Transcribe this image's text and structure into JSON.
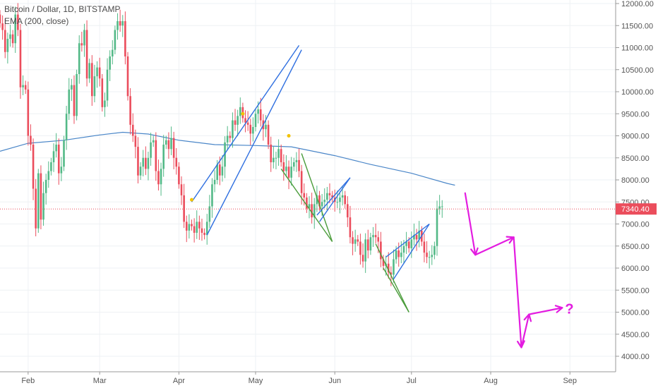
{
  "legend": {
    "title": "Bitcoin / Dollar, 1D, BITSTAMP",
    "indicator": "EMA (200, close)"
  },
  "colors": {
    "up": "#53b987",
    "down": "#eb4d5c",
    "ema": "#4a86c8",
    "pattern_blue": "#2f6fe0",
    "pattern_green": "#4a9c3a",
    "projection": "#e31ce0",
    "price_tag": "#eb4d5c",
    "marker": "#f2c200"
  },
  "chart_data": {
    "type": "candlestick",
    "title": "Bitcoin / Dollar, 1D, BITSTAMP",
    "xlabel": "",
    "ylabel": "",
    "ylim": [
      3800,
      12100
    ],
    "xlim": [
      "2018-01-21",
      "2018-09-11"
    ],
    "y_ticks": [
      "12000.00",
      "11500.00",
      "11000.00",
      "10500.00",
      "10000.00",
      "9500.00",
      "9000.00",
      "8500.00",
      "8000.00",
      "7500.00",
      "7000.00",
      "6500.00",
      "6000.00",
      "5500.00",
      "5000.00",
      "4500.00",
      "4000.00"
    ],
    "x_ticks": [
      {
        "label": "Feb",
        "date": "2018-02-01"
      },
      {
        "label": "Mar",
        "date": "2018-03-01"
      },
      {
        "label": "Apr",
        "date": "2018-04-01"
      },
      {
        "label": "May",
        "date": "2018-05-01"
      },
      {
        "label": "Jun",
        "date": "2018-06-01"
      },
      {
        "label": "Jul",
        "date": "2018-07-01"
      },
      {
        "label": "Aug",
        "date": "2018-08-01"
      },
      {
        "label": "Sep",
        "date": "2018-09-01"
      }
    ],
    "start_date": "2018-01-21",
    "last_price": "7340.40",
    "last_price_value": 7340.4,
    "closes": [
      11550,
      11400,
      10900,
      11200,
      11300,
      11100,
      11750,
      11400,
      10100,
      10150,
      10050,
      9000,
      8800,
      7800,
      6900,
      8150,
      7100,
      7700,
      8000,
      8200,
      8400,
      8650,
      8800,
      8150,
      8300,
      8900,
      9500,
      10050,
      10150,
      9450,
      10400,
      11100,
      11050,
      11400,
      10300,
      10650,
      9900,
      10350,
      10550,
      10300,
      9650,
      9800,
      10500,
      10800,
      10950,
      11400,
      11600,
      11500,
      11600,
      10800,
      9900,
      9250,
      9000,
      8750,
      8100,
      8300,
      8500,
      8250,
      8500,
      8850,
      8900,
      8200,
      7900,
      8250,
      8800,
      8900,
      8700,
      8950,
      8500,
      8300,
      7900,
      7650,
      7050,
      6850,
      7000,
      6950,
      6800,
      7050,
      6900,
      6800,
      6750,
      7050,
      7400,
      7900,
      8000,
      8350,
      8100,
      8300,
      8850,
      9000,
      8950,
      9350,
      9250,
      9450,
      9650,
      9400,
      9300,
      9250,
      9050,
      9200,
      9500,
      9600,
      9350,
      9150,
      9250,
      8800,
      8400,
      8500,
      8500,
      8700,
      8400,
      8200,
      8300,
      8050,
      8300,
      8400,
      8450,
      8200,
      7700,
      7600,
      7350,
      7450,
      7150,
      7450,
      7650,
      7400,
      7500,
      7550,
      7700,
      7650,
      7600,
      7500,
      7500,
      7600,
      7650,
      7450,
      7150,
      6700,
      6550,
      6650,
      6600,
      6300,
      6150,
      6650,
      6400,
      6700,
      6750,
      6700,
      6600,
      6200,
      6050,
      6100,
      5900,
      5850,
      6200,
      6400,
      6250,
      6350,
      6500,
      6600,
      6450,
      6650,
      6750,
      6650,
      6850,
      6600,
      6350,
      6250,
      6250,
      6300,
      6500,
      7350,
      7400,
      7400
    ],
    "ema": [
      {
        "date": "2018-01-21",
        "value": 8650
      },
      {
        "date": "2018-02-01",
        "value": 8830
      },
      {
        "date": "2018-02-15",
        "value": 8900
      },
      {
        "date": "2018-03-01",
        "value": 9020
      },
      {
        "date": "2018-03-10",
        "value": 9080
      },
      {
        "date": "2018-03-20",
        "value": 9040
      },
      {
        "date": "2018-04-01",
        "value": 8900
      },
      {
        "date": "2018-04-15",
        "value": 8800
      },
      {
        "date": "2018-05-01",
        "value": 8780
      },
      {
        "date": "2018-05-15",
        "value": 8750
      },
      {
        "date": "2018-06-01",
        "value": 8550
      },
      {
        "date": "2018-06-15",
        "value": 8350
      },
      {
        "date": "2018-07-01",
        "value": 8150
      },
      {
        "date": "2018-07-15",
        "value": 7920
      },
      {
        "date": "2018-07-18",
        "value": 7880
      }
    ],
    "markers": [
      {
        "date": "2018-04-06",
        "value": 7550
      },
      {
        "date": "2018-04-26",
        "value": 9500
      },
      {
        "date": "2018-05-14",
        "value": 9000
      }
    ],
    "patterns": {
      "rising_wedge": [
        {
          "from": {
            "date": "2018-04-06",
            "value": 7500
          },
          "to": {
            "date": "2018-05-18",
            "value": 11050
          }
        },
        {
          "from": {
            "date": "2018-04-12",
            "value": 6750
          },
          "to": {
            "date": "2018-05-19",
            "value": 10950
          }
        }
      ],
      "falling_wedge_may": [
        {
          "from": {
            "date": "2018-05-11",
            "value": 8250
          },
          "to": {
            "date": "2018-05-31",
            "value": 6600
          }
        },
        {
          "from": {
            "date": "2018-05-19",
            "value": 8600
          },
          "to": {
            "date": "2018-05-31",
            "value": 6600
          }
        }
      ],
      "rising_wedge_may": [
        {
          "from": {
            "date": "2018-05-26",
            "value": 7050
          },
          "to": {
            "date": "2018-06-07",
            "value": 8050
          }
        },
        {
          "from": {
            "date": "2018-05-25",
            "value": 7200
          },
          "to": {
            "date": "2018-06-07",
            "value": 8050
          }
        }
      ],
      "falling_wedge_june": [
        {
          "from": {
            "date": "2018-06-17",
            "value": 6550
          },
          "to": {
            "date": "2018-06-30",
            "value": 5000
          }
        },
        {
          "from": {
            "date": "2018-06-20",
            "value": 6000
          },
          "to": {
            "date": "2018-06-30",
            "value": 5000
          }
        }
      ],
      "rising_wedge_june": [
        {
          "from": {
            "date": "2018-06-21",
            "value": 6250
          },
          "to": {
            "date": "2018-07-08",
            "value": 7000
          }
        },
        {
          "from": {
            "date": "2018-06-24",
            "value": 5750
          },
          "to": {
            "date": "2018-07-08",
            "value": 7000
          }
        }
      ]
    },
    "projection": [
      {
        "date": "2018-07-22",
        "value": 7700
      },
      {
        "date": "2018-07-26",
        "value": 6300
      },
      {
        "date": "2018-08-10",
        "value": 6700
      },
      {
        "date": "2018-08-13",
        "value": 4200
      },
      {
        "date": "2018-08-16",
        "value": 4950
      },
      {
        "date": "2018-08-29",
        "value": 5100
      }
    ],
    "annotation_text": "?"
  }
}
